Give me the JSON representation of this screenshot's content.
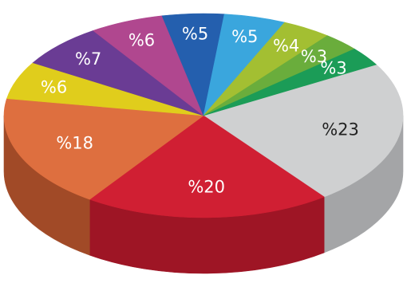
{
  "chart_data": {
    "type": "pie",
    "style": "3d",
    "unit_prefix": "%",
    "start_angle_deg": -30,
    "slices": [
      {
        "value": 23,
        "label": "%23",
        "color": "#cfd0d1",
        "side": "#a4a5a7",
        "text_color": "#222222"
      },
      {
        "value": 20,
        "label": "%20",
        "color": "#d01f33",
        "side": "#9e1525",
        "text_color": "#ffffff"
      },
      {
        "value": 18,
        "label": "%18",
        "color": "#de6f3f",
        "side": "#a14a27",
        "text_color": "#ffffff"
      },
      {
        "value": 6,
        "label": "%6",
        "color": "#e0cd1c",
        "side": "#b3a212",
        "text_color": "#ffffff"
      },
      {
        "value": 7,
        "label": "%7",
        "color": "#6a3c94",
        "side": "#4c2a6c",
        "text_color": "#ffffff"
      },
      {
        "value": 6,
        "label": "%6",
        "color": "#b0478f",
        "side": "#7f3266",
        "text_color": "#ffffff"
      },
      {
        "value": 5,
        "label": "%5",
        "color": "#245fae",
        "side": "#1a4580",
        "text_color": "#ffffff"
      },
      {
        "value": 5,
        "label": "%5",
        "color": "#3aa6dd",
        "side": "#2a7ca6",
        "text_color": "#ffffff"
      },
      {
        "value": 4,
        "label": "%4",
        "color": "#a3bf32",
        "side": "#7a8f25",
        "text_color": "#ffffff"
      },
      {
        "value": 3,
        "label": "%3",
        "color": "#6aad3c",
        "side": "#4f822c",
        "text_color": "#ffffff"
      },
      {
        "value": 3,
        "label": "%3",
        "color": "#1b9c57",
        "side": "#137240",
        "text_color": "#ffffff"
      }
    ]
  }
}
